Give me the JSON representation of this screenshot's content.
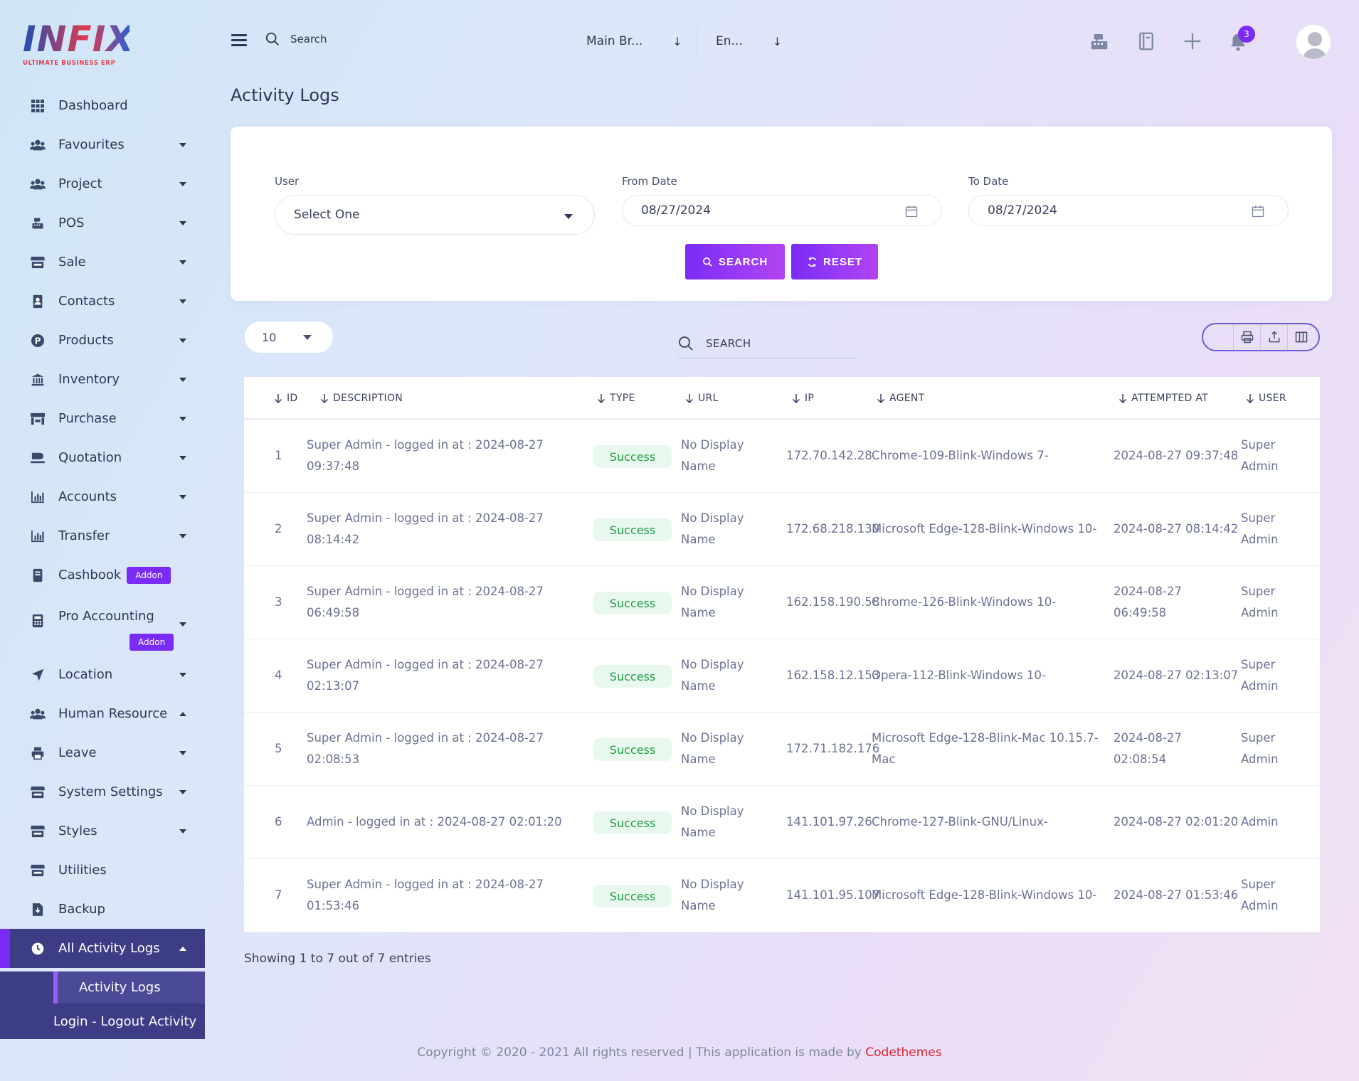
{
  "brand": {
    "logo": "INFIX",
    "tagline": "ULTIMATE BUSINESS ERP",
    "accent": "#7a2bf5",
    "logo_red": "#e23a4c"
  },
  "topbar": {
    "search_label": "Search",
    "branch_select": "Main Br...",
    "language_select": "En...",
    "notification_count": "3"
  },
  "sidebar": {
    "items": [
      {
        "label": "Dashboard",
        "icon": "grid-icon"
      },
      {
        "label": "Favourites",
        "icon": "users-icon"
      },
      {
        "label": "Project",
        "icon": "users-icon"
      },
      {
        "label": "POS",
        "icon": "cash-register-icon"
      },
      {
        "label": "Sale",
        "icon": "store-icon"
      },
      {
        "label": "Contacts",
        "icon": "contact-book-icon"
      },
      {
        "label": "Products",
        "icon": "product-p-icon"
      },
      {
        "label": "Inventory",
        "icon": "bank-icon"
      },
      {
        "label": "Purchase",
        "icon": "shop-icon"
      },
      {
        "label": "Quotation",
        "icon": "quote-icon"
      },
      {
        "label": "Accounts",
        "icon": "bar-chart-icon"
      },
      {
        "label": "Transfer",
        "icon": "bar-chart-icon"
      },
      {
        "label": "Cashbook",
        "icon": "book-icon",
        "badge": "Addon"
      },
      {
        "label": "Pro Accounting",
        "icon": "calculator-icon",
        "badge": "Addon"
      },
      {
        "label": "Location",
        "icon": "location-arrow-icon"
      },
      {
        "label": "Human Resource",
        "icon": "users-icon"
      },
      {
        "label": "Leave",
        "icon": "print-icon"
      },
      {
        "label": "System Settings",
        "icon": "store-icon"
      },
      {
        "label": "Styles",
        "icon": "store-icon"
      },
      {
        "label": "Utilities",
        "icon": "store-icon"
      },
      {
        "label": "Backup",
        "icon": "file-download-icon"
      },
      {
        "label": "All Activity Logs",
        "icon": "clock-icon"
      }
    ],
    "submenu": [
      "Activity Logs",
      "Login - Logout Activity"
    ]
  },
  "page": {
    "title": "Activity Logs"
  },
  "filters": {
    "user_label": "User",
    "user_value": "Select One",
    "from_label": "From Date",
    "from_value": "08/27/2024",
    "to_label": "To Date",
    "to_value": "08/27/2024",
    "search_btn": "SEARCH",
    "reset_btn": "RESET"
  },
  "table_toolbar": {
    "page_size": "10",
    "search_placeholder": "SEARCH"
  },
  "table": {
    "columns": [
      "ID",
      "DESCRIPTION",
      "TYPE",
      "URL",
      "IP",
      "AGENT",
      "ATTEMPTED AT",
      "USER"
    ],
    "rows": [
      {
        "id": "1",
        "desc1": "Super Admin - logged in at : 2024-08-27",
        "desc2": "09:37:48",
        "type": "Success",
        "url1": "No Display",
        "url2": "Name",
        "ip": "172.70.142.28",
        "agent1": "Chrome-109-Blink-Windows 7-",
        "agent2": "",
        "at1": "2024-08-27 09:37:48",
        "at2": "",
        "user1": "Super",
        "user2": "Admin"
      },
      {
        "id": "2",
        "desc1": "Super Admin - logged in at : 2024-08-27",
        "desc2": "08:14:42",
        "type": "Success",
        "url1": "No Display",
        "url2": "Name",
        "ip": "172.68.218.130",
        "agent1": "Microsoft Edge-128-Blink-Windows 10-",
        "agent2": "",
        "at1": "2024-08-27 08:14:42",
        "at2": "",
        "user1": "Super",
        "user2": "Admin"
      },
      {
        "id": "3",
        "desc1": "Super Admin - logged in at : 2024-08-27",
        "desc2": "06:49:58",
        "type": "Success",
        "url1": "No Display",
        "url2": "Name",
        "ip": "162.158.190.58",
        "agent1": "Chrome-126-Blink-Windows 10-",
        "agent2": "",
        "at1": "2024-08-27",
        "at2": "06:49:58",
        "user1": "Super",
        "user2": "Admin"
      },
      {
        "id": "4",
        "desc1": "Super Admin - logged in at : 2024-08-27",
        "desc2": "02:13:07",
        "type": "Success",
        "url1": "No Display",
        "url2": "Name",
        "ip": "162.158.12.153",
        "agent1": "Opera-112-Blink-Windows 10-",
        "agent2": "",
        "at1": "2024-08-27 02:13:07",
        "at2": "",
        "user1": "Super",
        "user2": "Admin"
      },
      {
        "id": "5",
        "desc1": "Super Admin - logged in at : 2024-08-27",
        "desc2": "02:08:53",
        "type": "Success",
        "url1": "No Display",
        "url2": "Name",
        "ip": "172.71.182.176",
        "agent1": "Microsoft Edge-128-Blink-Mac 10.15.7-",
        "agent2": "Mac",
        "at1": "2024-08-27",
        "at2": "02:08:54",
        "user1": "Super",
        "user2": "Admin"
      },
      {
        "id": "6",
        "desc1": "Admin - logged in at : 2024-08-27 02:01:20",
        "desc2": "",
        "type": "Success",
        "url1": "No Display",
        "url2": "Name",
        "ip": "141.101.97.26",
        "agent1": "Chrome-127-Blink-GNU/Linux-",
        "agent2": "",
        "at1": "2024-08-27 02:01:20",
        "at2": "",
        "user1": "Admin",
        "user2": ""
      },
      {
        "id": "7",
        "desc1": "Super Admin - logged in at : 2024-08-27",
        "desc2": "01:53:46",
        "type": "Success",
        "url1": "No Display",
        "url2": "Name",
        "ip": "141.101.95.107",
        "agent1": "Microsoft Edge-128-Blink-Windows 10-",
        "agent2": "",
        "at1": "2024-08-27 01:53:46",
        "at2": "",
        "user1": "Super",
        "user2": "Admin"
      }
    ]
  },
  "showing": "Showing 1 to 7 out of 7 entries",
  "footer": {
    "text": "Copyright © 2020 - 2021 All rights reserved | This application is made by",
    "brand": "Codethemes"
  }
}
